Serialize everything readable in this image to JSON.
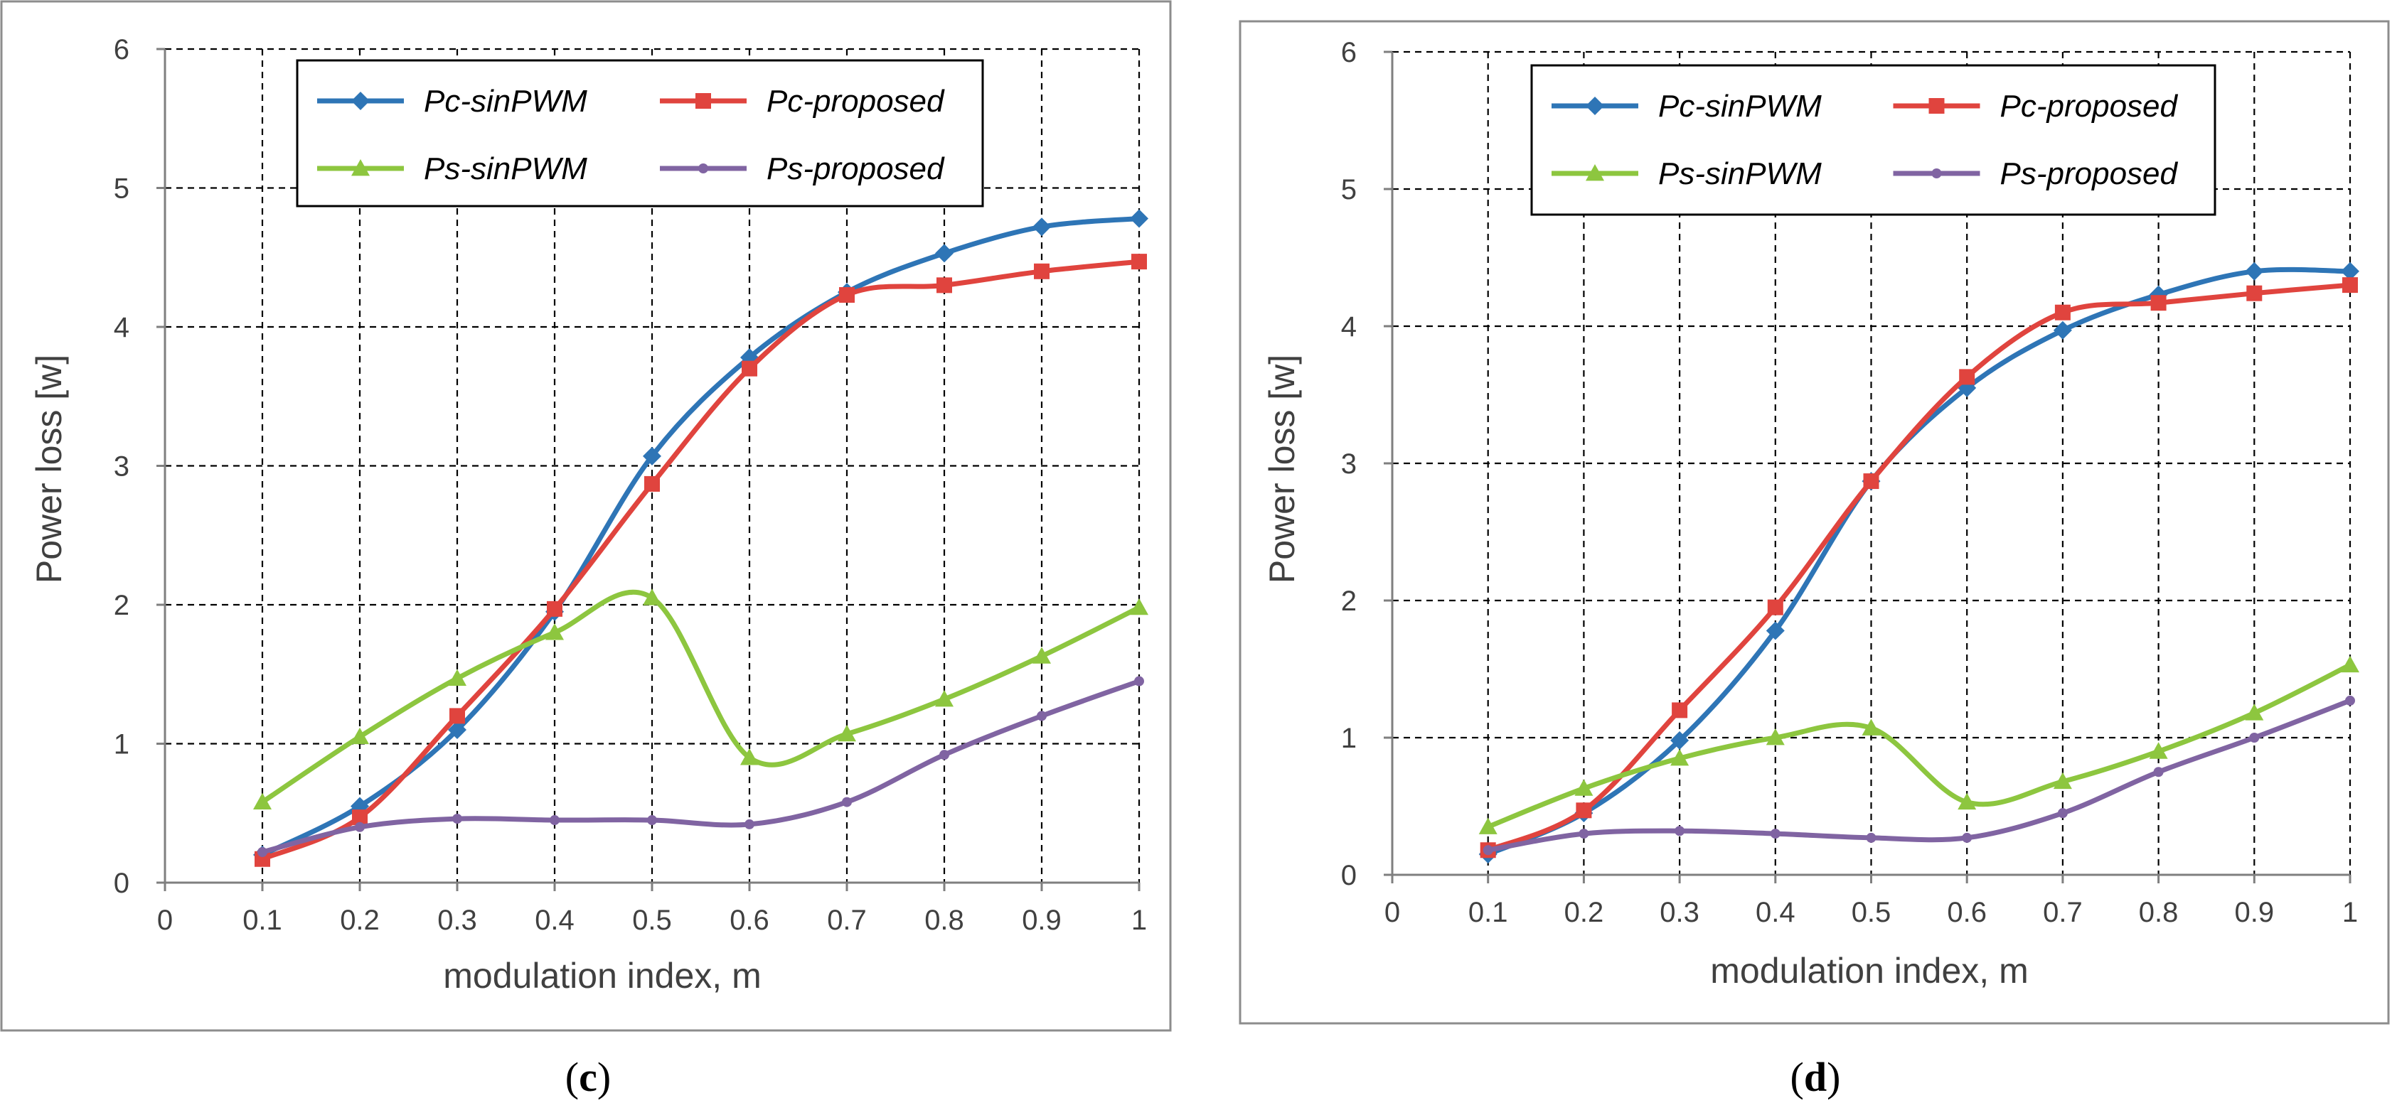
{
  "chart_data": [
    {
      "type": "line",
      "panel_label": "c",
      "xlabel": "modulation index, m",
      "ylabel": "Power loss [w]",
      "xlim": [
        0,
        1
      ],
      "ylim": [
        0,
        6
      ],
      "grid": true,
      "legend_position": "top",
      "x_ticks": [
        "0",
        "0.1",
        "0.2",
        "0.3",
        "0.4",
        "0.5",
        "0.6",
        "0.7",
        "0.8",
        "0.9",
        "1"
      ],
      "y_ticks": [
        "0",
        "1",
        "2",
        "3",
        "4",
        "5",
        "6"
      ],
      "x": [
        0.1,
        0.2,
        0.3,
        0.4,
        0.5,
        0.6,
        0.7,
        0.8,
        0.9,
        1.0
      ],
      "series": [
        {
          "name": "Pc-sinPWM",
          "color": "#2E75B6",
          "marker": "diamond",
          "values": [
            0.2,
            0.55,
            1.1,
            1.95,
            3.07,
            3.78,
            4.25,
            4.53,
            4.72,
            4.78
          ]
        },
        {
          "name": "Pc-proposed",
          "color": "#E0443E",
          "marker": "square",
          "values": [
            0.17,
            0.47,
            1.2,
            1.97,
            2.87,
            3.7,
            4.23,
            4.3,
            4.4,
            4.47
          ]
        },
        {
          "name": "Ps-sinPWM",
          "color": "#8DC63F",
          "marker": "triangle",
          "values": [
            0.58,
            1.05,
            1.47,
            1.8,
            2.05,
            0.9,
            1.07,
            1.32,
            1.63,
            1.98
          ]
        },
        {
          "name": "Ps-proposed",
          "color": "#8064A2",
          "marker": "dot",
          "values": [
            0.22,
            0.4,
            0.46,
            0.45,
            0.45,
            0.42,
            0.58,
            0.92,
            1.2,
            1.45
          ]
        }
      ]
    },
    {
      "type": "line",
      "panel_label": "d",
      "xlabel": "modulation index, m",
      "ylabel": "Power loss [w]",
      "xlim": [
        0,
        1
      ],
      "ylim": [
        0,
        6
      ],
      "grid": true,
      "legend_position": "top",
      "x_ticks": [
        "0",
        "0.1",
        "0.2",
        "0.3",
        "0.4",
        "0.5",
        "0.6",
        "0.7",
        "0.8",
        "0.9",
        "1"
      ],
      "y_ticks": [
        "0",
        "1",
        "2",
        "3",
        "4",
        "5",
        "6"
      ],
      "x": [
        0.1,
        0.2,
        0.3,
        0.4,
        0.5,
        0.6,
        0.7,
        0.8,
        0.9,
        1.0
      ],
      "series": [
        {
          "name": "Pc-sinPWM",
          "color": "#2E75B6",
          "marker": "diamond",
          "values": [
            0.15,
            0.45,
            0.98,
            1.78,
            2.87,
            3.55,
            3.97,
            4.23,
            4.4,
            4.4
          ]
        },
        {
          "name": "Pc-proposed",
          "color": "#E0443E",
          "marker": "square",
          "values": [
            0.18,
            0.47,
            1.2,
            1.95,
            2.87,
            3.63,
            4.1,
            4.17,
            4.24,
            4.3
          ]
        },
        {
          "name": "Ps-sinPWM",
          "color": "#8DC63F",
          "marker": "triangle",
          "values": [
            0.35,
            0.63,
            0.85,
            1.0,
            1.07,
            0.53,
            0.68,
            0.9,
            1.18,
            1.53
          ]
        },
        {
          "name": "Ps-proposed",
          "color": "#8064A2",
          "marker": "dot",
          "values": [
            0.18,
            0.3,
            0.32,
            0.3,
            0.27,
            0.27,
            0.45,
            0.75,
            1.0,
            1.27
          ]
        }
      ]
    }
  ]
}
